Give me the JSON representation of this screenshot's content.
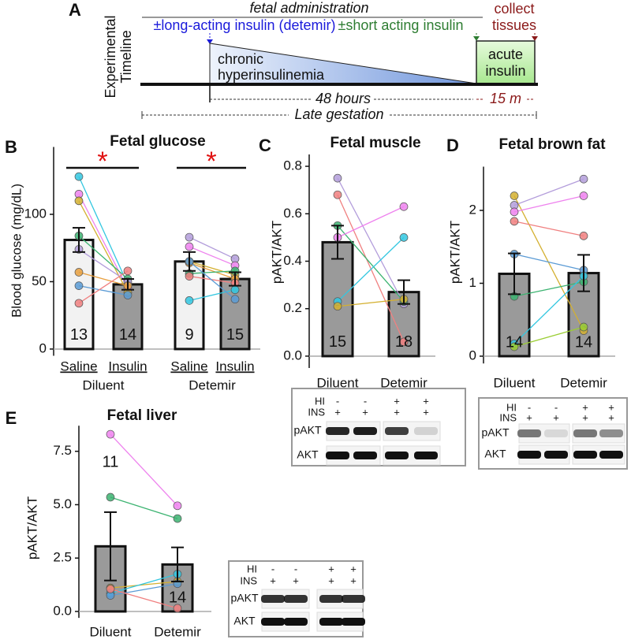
{
  "timeline": {
    "panel": "A",
    "header": "fetal administration",
    "long_acting": "±long-acting insulin (detemir)",
    "short_acting": "±short acting insulin",
    "collect": [
      "collect",
      "tissues"
    ],
    "axis_label": [
      "Experimental",
      "Timeline"
    ],
    "chronic": [
      "chronic",
      "hyperinsulinemia"
    ],
    "acute": [
      "acute",
      "insulin"
    ],
    "duration_chronic": "48 hours",
    "duration_acute": "15 m",
    "span": "Late gestation"
  },
  "chart_data": [
    {
      "type": "bar",
      "panel": "B",
      "title": "Fetal glucose",
      "ylabel": "Blood glucose (mg/dL)",
      "categories": [
        "Saline",
        "Insulin",
        "Saline",
        "Insulin"
      ],
      "group_labels": [
        "Diluent",
        "Detemir"
      ],
      "values": [
        81,
        48,
        65,
        52
      ],
      "errors": [
        9,
        4,
        7,
        5
      ],
      "n_labels": [
        13,
        14,
        9,
        15
      ],
      "bar_colors": [
        "#f2f2f2",
        "#9a9a9a",
        "#f2f2f2",
        "#9a9a9a"
      ],
      "ylim": [
        -5,
        150
      ],
      "yticks": [
        0,
        50,
        100
      ],
      "significance": [
        "*",
        "*"
      ],
      "paired_points": [
        [
          {
            "color": "#33c7e0",
            "values": [
              128,
              48
            ]
          },
          {
            "color": "#ee82ee",
            "values": [
              115,
              45
            ]
          },
          {
            "color": "#d4b030",
            "values": [
              110,
              42
            ]
          },
          {
            "color": "#3cb371",
            "values": [
              84,
              52
            ]
          },
          {
            "color": "#b39ddb",
            "values": [
              74,
              50
            ]
          },
          {
            "color": "#e8a040",
            "values": [
              57,
              47
            ]
          },
          {
            "color": "#5b9bd5",
            "values": [
              47,
              40
            ]
          },
          {
            "color": "#f08080",
            "values": [
              34,
              58
            ]
          }
        ],
        [
          {
            "color": "#b39ddb",
            "values": [
              83,
              67
            ]
          },
          {
            "color": "#ee82ee",
            "values": [
              76,
              62
            ]
          },
          {
            "color": "#d4b030",
            "values": [
              65,
              55
            ]
          },
          {
            "color": "#e8a040",
            "values": [
              64,
              52
            ]
          },
          {
            "color": "#3cb371",
            "values": [
              56,
              58
            ]
          },
          {
            "color": "#f08080",
            "values": [
              54,
              49
            ]
          },
          {
            "color": "#33c7e0",
            "values": [
              36,
              44
            ]
          },
          {
            "color": "#5b9bd5",
            "values": [
              65,
              37
            ]
          }
        ]
      ]
    },
    {
      "type": "bar",
      "panel": "C",
      "title": "Fetal muscle",
      "ylabel": "pAKT/AKT",
      "categories": [
        "Diluent",
        "Detemir"
      ],
      "values": [
        0.48,
        0.27
      ],
      "errors": [
        0.07,
        0.05
      ],
      "n_labels": [
        15,
        18
      ],
      "bar_colors": [
        "#9a9a9a",
        "#9a9a9a"
      ],
      "ylim": [
        -0.05,
        0.85
      ],
      "yticks": [
        {
          "value": 0,
          "label": "0.0"
        },
        0.2,
        0.4,
        0.6,
        0.8
      ],
      "paired_points": [
        [
          {
            "color": "#b39ddb",
            "values": [
              0.75,
              0.22
            ]
          },
          {
            "color": "#f08080",
            "values": [
              0.68,
              0.06
            ]
          },
          {
            "color": "#3cb371",
            "values": [
              0.55,
              0.23
            ]
          },
          {
            "color": "#ee82ee",
            "values": [
              0.5,
              0.63
            ]
          },
          {
            "color": "#33c7e0",
            "values": [
              0.23,
              0.5
            ]
          },
          {
            "color": "#d4b030",
            "values": [
              0.21,
              0.24
            ]
          }
        ]
      ],
      "blot": {
        "rows": [
          {
            "label": "HI",
            "marks": [
              "-",
              "-",
              "+",
              "+"
            ]
          },
          {
            "label": "INS",
            "marks": [
              "+",
              "+",
              "+",
              "+"
            ]
          }
        ],
        "bands": [
          "pAKT",
          "AKT"
        ]
      }
    },
    {
      "type": "bar",
      "panel": "D",
      "title": "Fetal brown fat",
      "ylabel": "pAKT/AKT",
      "categories": [
        "Diluent",
        "Detemir"
      ],
      "values": [
        1.13,
        1.14
      ],
      "errors": [
        0.28,
        0.25
      ],
      "n_labels": [
        14,
        14
      ],
      "bar_colors": [
        "#9a9a9a",
        "#9a9a9a"
      ],
      "ylim": [
        -0.1,
        2.6
      ],
      "yticks": [
        0,
        1,
        2
      ],
      "paired_points": [
        [
          {
            "color": "#d4b030",
            "values": [
              2.2,
              0.35
            ]
          },
          {
            "color": "#b39ddb",
            "values": [
              2.07,
              2.43
            ]
          },
          {
            "color": "#ee82ee",
            "values": [
              1.98,
              2.2
            ]
          },
          {
            "color": "#f08080",
            "values": [
              1.85,
              1.65
            ]
          },
          {
            "color": "#5b9bd5",
            "values": [
              1.4,
              1.18
            ]
          },
          {
            "color": "#3cb371",
            "values": [
              0.82,
              1.02
            ]
          },
          {
            "color": "#33c7e0",
            "values": [
              0.17,
              1.1
            ]
          },
          {
            "color": "#9acd32",
            "values": [
              0.13,
              0.4
            ]
          }
        ]
      ],
      "blot": {
        "rows": [
          {
            "label": "HI",
            "marks": [
              "-",
              "-",
              "+",
              "+"
            ]
          },
          {
            "label": "INS",
            "marks": [
              "+",
              "+",
              "+",
              "+"
            ]
          }
        ],
        "bands": [
          "pAKT",
          "AKT"
        ]
      }
    },
    {
      "type": "bar",
      "panel": "E",
      "title": "Fetal liver",
      "ylabel": "pAKT/AKT",
      "categories": [
        "Diluent",
        "Detemir"
      ],
      "values": [
        3.05,
        2.2
      ],
      "errors": [
        1.6,
        0.8
      ],
      "n_labels": [
        11,
        14
      ],
      "bar_colors": [
        "#9a9a9a",
        "#9a9a9a"
      ],
      "ylim": [
        -0.3,
        8.7
      ],
      "yticks": [
        {
          "value": 0,
          "label": "0.0"
        },
        2.5,
        {
          "value": 5,
          "label": "5.0"
        },
        7.5
      ],
      "paired_points": [
        [
          {
            "color": "#ee82ee",
            "values": [
              8.3,
              4.95
            ]
          },
          {
            "color": "#3cb371",
            "values": [
              5.35,
              4.35
            ]
          },
          {
            "color": "#d4b030",
            "values": [
              1.1,
              1.4
            ]
          },
          {
            "color": "#33c7e0",
            "values": [
              0.85,
              1.75
            ]
          },
          {
            "color": "#5b9bd5",
            "values": [
              0.75,
              1.3
            ]
          },
          {
            "color": "#f08080",
            "values": [
              1.05,
              0.15
            ]
          }
        ]
      ],
      "blot": {
        "rows": [
          {
            "label": "HI",
            "marks": [
              "-",
              "-",
              "+",
              "+"
            ]
          },
          {
            "label": "INS",
            "marks": [
              "+",
              "+",
              "+",
              "+"
            ]
          }
        ],
        "bands": [
          "pAKT",
          "AKT"
        ]
      }
    }
  ]
}
